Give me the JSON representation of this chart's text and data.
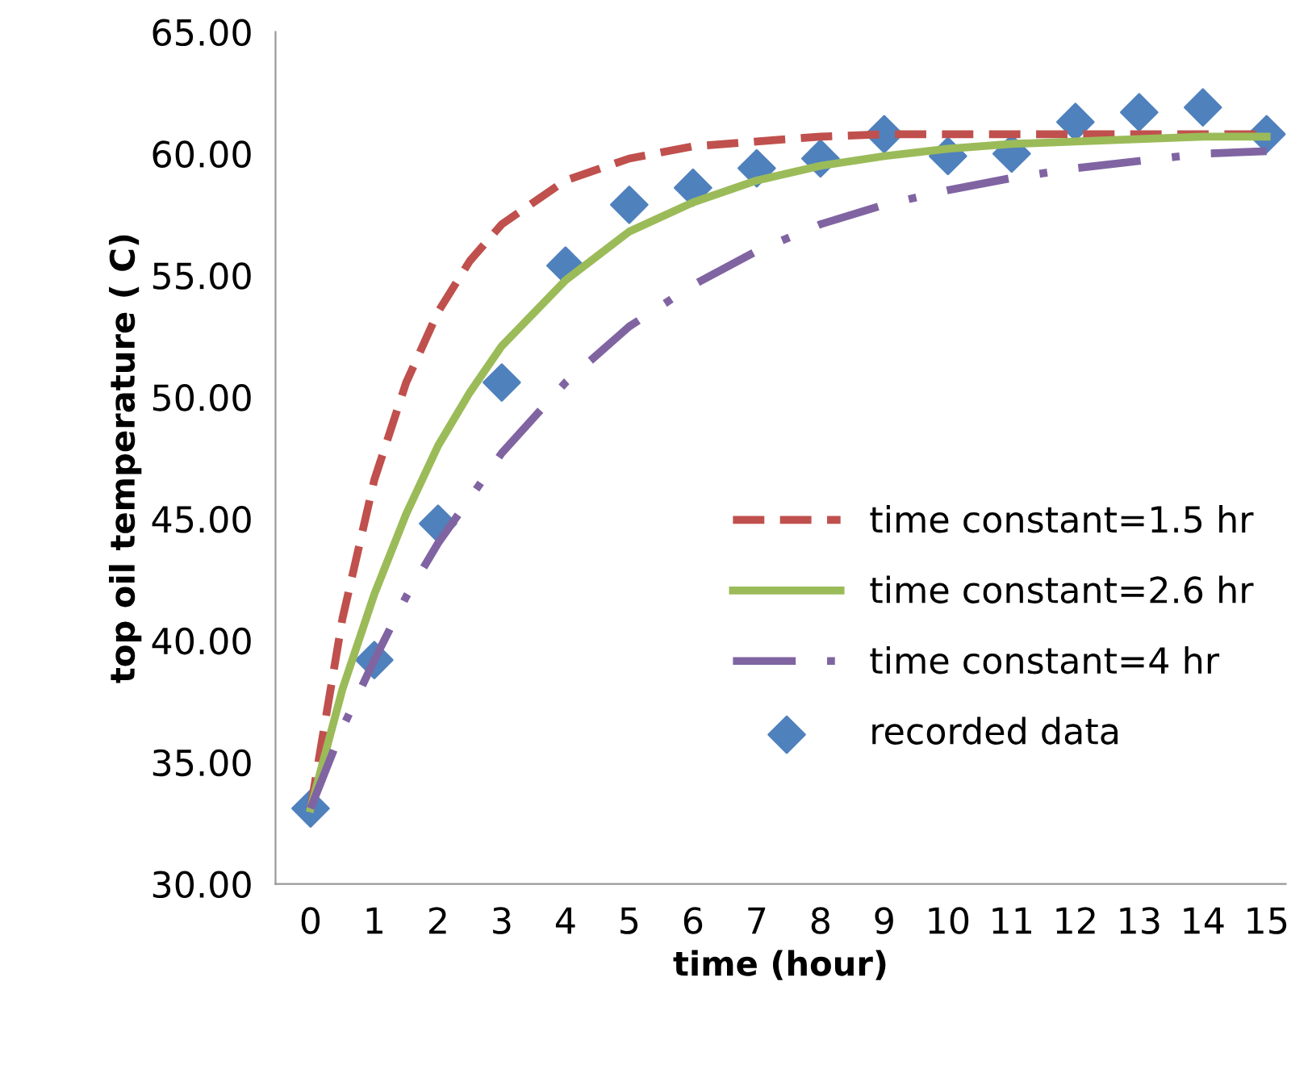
{
  "chart_data": {
    "type": "line",
    "xlabel": "time (hour)",
    "ylabel": "top oil temperature ( C)",
    "xlim": [
      -0.55,
      15.3
    ],
    "ylim": [
      30,
      65
    ],
    "xticks": [
      0,
      1,
      2,
      3,
      4,
      5,
      6,
      7,
      8,
      9,
      10,
      11,
      12,
      13,
      14,
      15
    ],
    "yticks": [
      {
        "value": 30,
        "label": "30.00"
      },
      {
        "value": 35,
        "label": "35.00"
      },
      {
        "value": 40,
        "label": "40.00"
      },
      {
        "value": 45,
        "label": "45.00"
      },
      {
        "value": 50,
        "label": "50.00"
      },
      {
        "value": 55,
        "label": "55.00"
      },
      {
        "value": 60,
        "label": "60.00"
      },
      {
        "value": 65,
        "label": "65.00"
      }
    ],
    "grid": false,
    "legend": "right",
    "series": [
      {
        "name": "time constant=1.5 hr",
        "color": "#c0504d",
        "line_style": "dashed",
        "marker": "none",
        "x": [
          0,
          0.5,
          1,
          1.5,
          2,
          2.5,
          3,
          4,
          5,
          6,
          7,
          8,
          9,
          10,
          11,
          12,
          13,
          14,
          15
        ],
        "values": [
          33.1,
          40.9,
          46.6,
          50.6,
          53.5,
          55.6,
          57.1,
          58.9,
          59.8,
          60.3,
          60.5,
          60.7,
          60.8,
          60.8,
          60.8,
          60.8,
          60.8,
          60.8,
          60.8
        ]
      },
      {
        "name": "time constant=2.6 hr",
        "color": "#9bbb59",
        "line_style": "solid",
        "marker": "none",
        "x": [
          0,
          0.5,
          1,
          1.5,
          2,
          2.5,
          3,
          4,
          5,
          6,
          7,
          8,
          9,
          10,
          11,
          12,
          13,
          14,
          15
        ],
        "values": [
          33.1,
          38.0,
          41.9,
          45.2,
          48.0,
          50.2,
          52.1,
          54.8,
          56.8,
          58.0,
          58.9,
          59.5,
          59.9,
          60.2,
          60.4,
          60.5,
          60.6,
          60.7,
          60.7
        ]
      },
      {
        "name": "time constant=4 hr",
        "color": "#8064a2",
        "line_style": "dashdot",
        "marker": "none",
        "x": [
          0,
          0.5,
          1,
          1.5,
          2,
          3,
          4,
          5,
          6,
          7,
          8,
          9,
          10,
          11,
          12,
          13,
          14,
          15
        ],
        "values": [
          33.1,
          36.4,
          39.2,
          41.8,
          44.0,
          47.7,
          50.6,
          52.9,
          54.6,
          56.0,
          57.1,
          57.9,
          58.5,
          59.0,
          59.4,
          59.7,
          60.0,
          60.1
        ]
      },
      {
        "name": "recorded data",
        "type": "scatter",
        "color": "#4f81bd",
        "marker": "diamond",
        "x": [
          0,
          1,
          2,
          3,
          4,
          5,
          6,
          7,
          8,
          9,
          10,
          11,
          12,
          13,
          14,
          15
        ],
        "values": [
          33.1,
          39.2,
          44.8,
          50.6,
          55.4,
          57.9,
          58.6,
          59.4,
          59.8,
          60.8,
          59.9,
          60.0,
          61.3,
          61.7,
          61.9,
          60.8
        ]
      }
    ]
  }
}
